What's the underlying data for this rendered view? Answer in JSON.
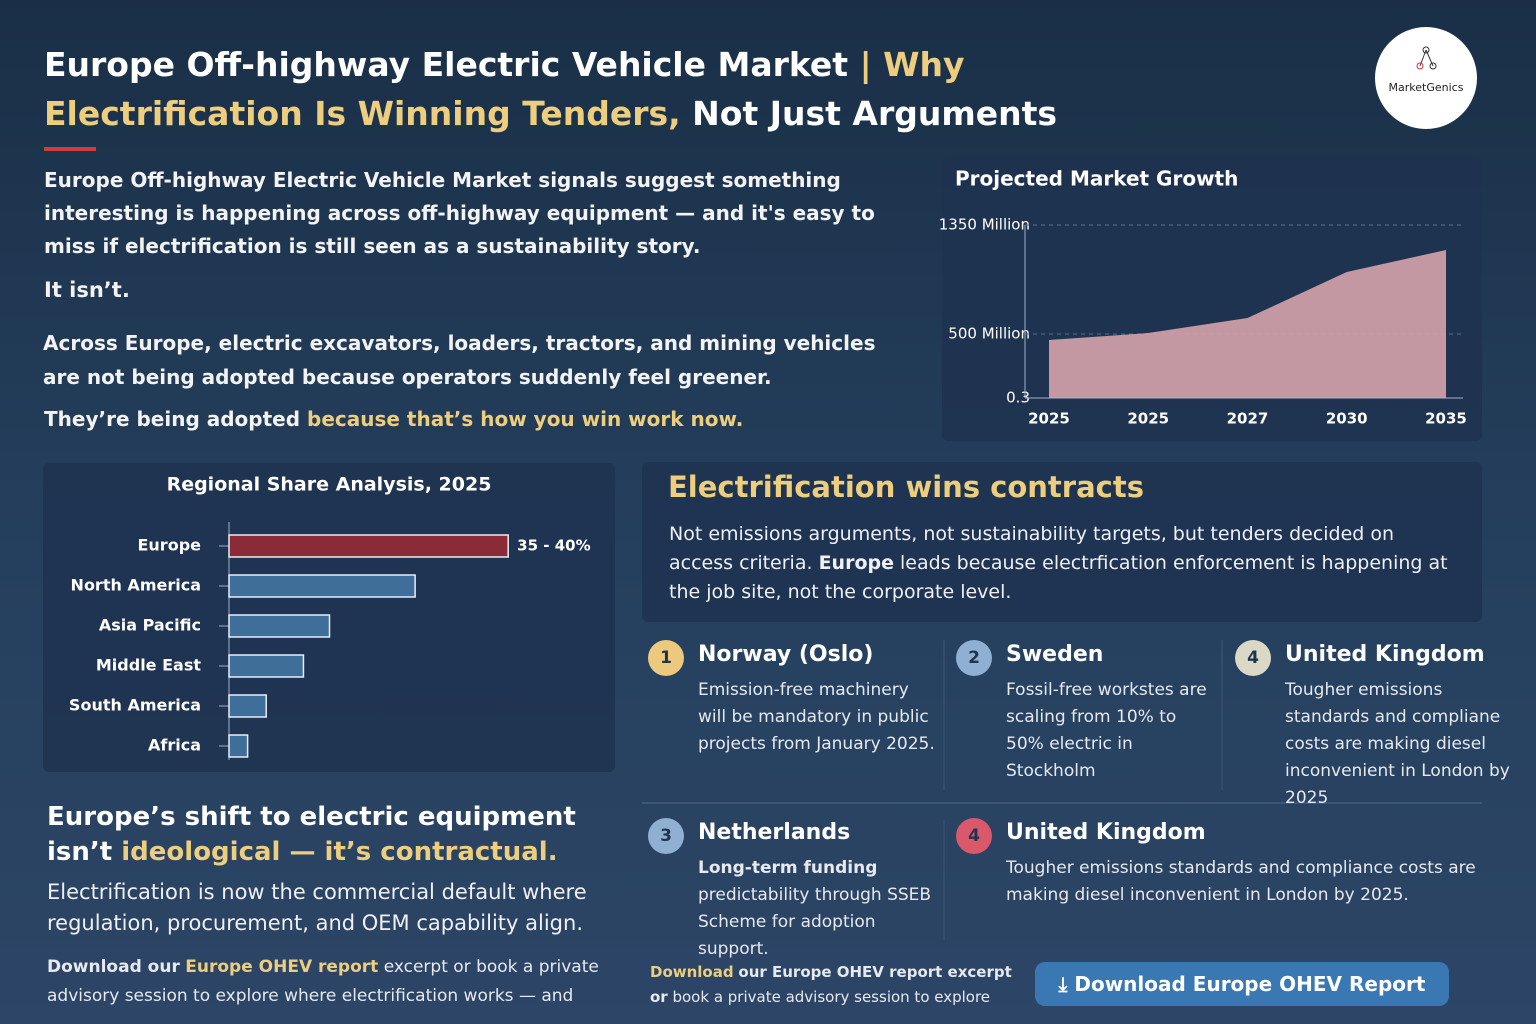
{
  "header": {
    "title_part1": "Europe Off-highway Electric Vehicle Market",
    "separator": "|",
    "title_highlight": "Why Electrification Is Winning Tenders,",
    "title_part2": "Not Just Arguments",
    "logo": "MarketGenics"
  },
  "intro": {
    "p1": "Europe Off-highway Electric Vehicle Market signals suggest something interesting is happening across off-highway equipment — and it's easy to miss if electrification is still seen as a sustainability story.",
    "p2": "It isn’t.",
    "p3": "Across Europe, electric excavators, loaders, tractors, and mining vehicles are not being adopted because operators suddenly feel greener.",
    "p4": "They’re being adopted",
    "p4_highlight": "because that’s how you win work now."
  },
  "chart_data": [
    {
      "type": "bar",
      "orientation": "horizontal",
      "title": "Regional Share Analysis, 2025",
      "categories": [
        "Europe",
        "North America",
        "Asia Pacific",
        "Middle East",
        "South America",
        "Africa"
      ],
      "values": [
        37.5,
        25,
        13.5,
        10,
        5,
        2.5
      ],
      "value_labels": [
        "35 - 40%",
        null,
        null,
        null,
        null,
        null
      ],
      "colors": [
        "#8c2b38",
        "#3f6e9a",
        "#3f6e9a",
        "#3f6e9a",
        "#3f6e9a",
        "#3f6e9a"
      ],
      "xlim": [
        0,
        45
      ]
    },
    {
      "type": "area",
      "title": "Projected Market Growth",
      "categories": [
        "2025",
        "2025",
        "2027",
        "2030",
        "2035"
      ],
      "values": [
        453,
        507,
        624,
        983,
        1155
      ],
      "color": "#d6a3ac",
      "ylim": [
        0.3,
        1350
      ],
      "yticks": [
        {
          "value": 1350,
          "label": "1350 Million"
        },
        {
          "value": 500,
          "label": "500 Million"
        },
        0.3
      ],
      "grid": true
    }
  ],
  "contracts": {
    "title": "Electrification wins contracts",
    "body1": "Not emissions arguments, not sustainability  targets, but tenders decided on access criteria.",
    "body_bold": "Europe",
    "body2": "leads because electrfication enforcement is happening at the job site, not the corporate level."
  },
  "cards": [
    {
      "number": 1,
      "title": "Norway (Oslo)",
      "text": "Emission-free machinery will be mandatory in public projects from January 2025."
    },
    {
      "number": 2,
      "title": "Sweden",
      "text": "Fossil-free workstes are scaling from 10% to 50% electric in Stockholm"
    },
    {
      "number": 4,
      "title": "United Kingdom",
      "text": "Tougher emissions standards and compliane costs are making diesel inconvenient in London by 2025"
    },
    {
      "number": 3,
      "title": "Netherlands",
      "bold": "Long-term funding",
      "text": "predictability through SSEB Scheme for adoption support."
    },
    {
      "number": 4,
      "title": "United Kingdom",
      "text": "Tougher emissions standards and compliance costs are making diesel inconvenient in London by 2025."
    }
  ],
  "shift": {
    "heading": "Europe’s shift to electric equipment isn’t",
    "heading_highlight": "ideological — it’s contractual.",
    "body": "Electrification is now the commercial default where regulation, procurement, and OEM capability align.",
    "cta_bold": "Download our",
    "cta_highlight": "Europe OHEV report",
    "cta_rest": "excerpt or book a private advisory session to explore  where electrification works — and"
  },
  "footer": {
    "cta_highlight": "Download",
    "cta_bold": "our Europe OHEV report excerpt or",
    "cta_rest": "book a private advisory session to explore",
    "button": "Download Europe OHEV Report"
  }
}
